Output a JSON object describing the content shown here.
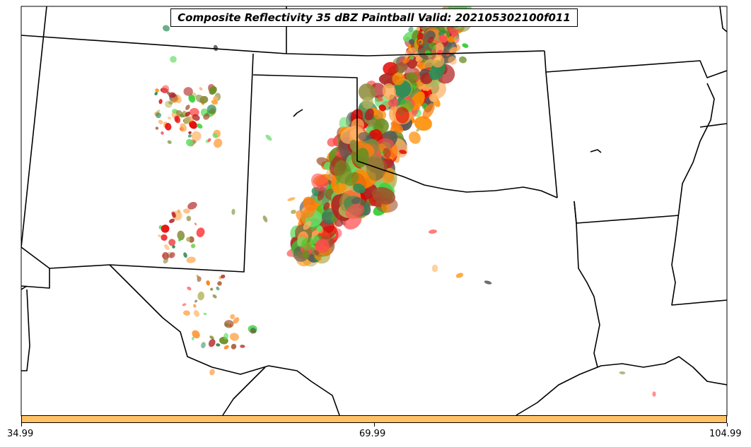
{
  "title": "Composite Reflectivity 35 dBZ Paintball Valid: 202105302100f011",
  "colorbar": {
    "color": "#FFC266",
    "ticks": [
      "34.99",
      "69.99",
      "104.99"
    ]
  },
  "palette": [
    "#FF4D4D",
    "#E60000",
    "#FF8C00",
    "#FF7F0E",
    "#FFA64D",
    "#FFB366",
    "#6B8E23",
    "#8B8B3A",
    "#32CD32",
    "#66DD66",
    "#B22222",
    "#A0522D",
    "#595959",
    "#B5B35C",
    "#2E8B57"
  ]
}
